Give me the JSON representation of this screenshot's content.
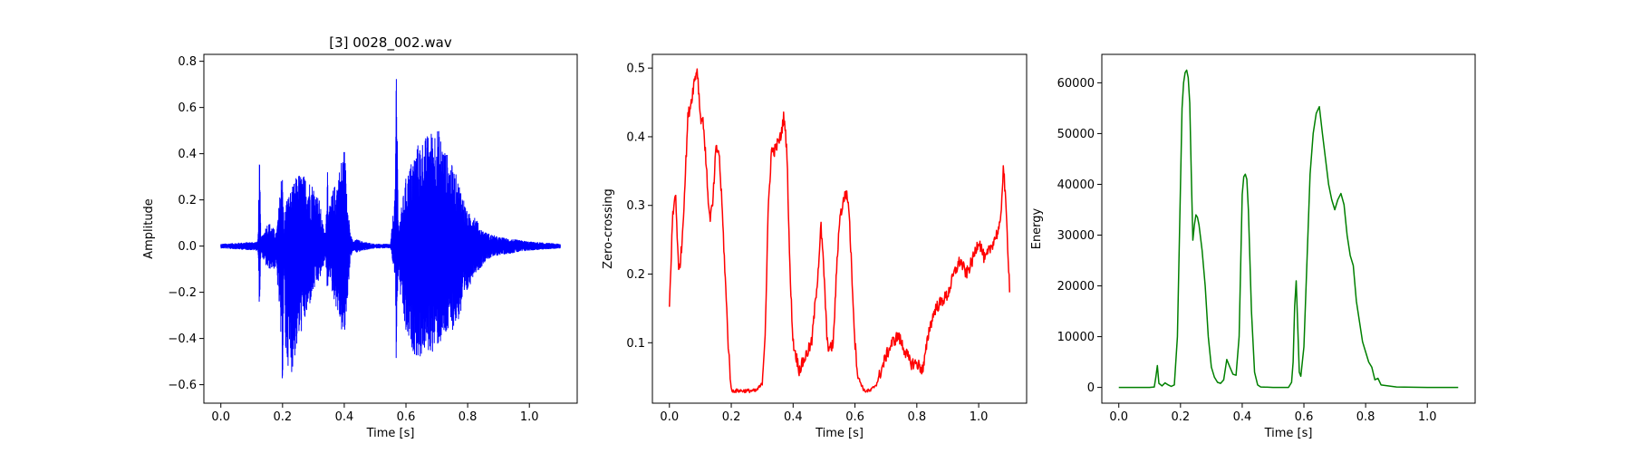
{
  "chart_data": [
    {
      "type": "line",
      "title": "[3] 0028_002.wav",
      "xlabel": "Time [s]",
      "ylabel": "Amplitude",
      "xlim": [
        -0.055,
        1.155
      ],
      "ylim": [
        -0.68,
        0.83
      ],
      "xticks": [
        0.0,
        0.2,
        0.4,
        0.6,
        0.8,
        1.0
      ],
      "xtick_labels": [
        "0.0",
        "0.2",
        "0.4",
        "0.6",
        "0.8",
        "1.0"
      ],
      "yticks": [
        -0.6,
        -0.4,
        -0.2,
        0.0,
        0.2,
        0.4,
        0.6,
        0.8
      ],
      "ytick_labels": [
        "−0.6",
        "−0.4",
        "−0.2",
        "0.0",
        "0.2",
        "0.4",
        "0.6",
        "0.8"
      ],
      "color": "#0000ff",
      "style": "waveform",
      "envelope": {
        "x": [
          0.0,
          0.12,
          0.125,
          0.13,
          0.135,
          0.15,
          0.16,
          0.18,
          0.19,
          0.2,
          0.205,
          0.21,
          0.23,
          0.25,
          0.28,
          0.3,
          0.32,
          0.33,
          0.34,
          0.345,
          0.35,
          0.36,
          0.38,
          0.4,
          0.42,
          0.43,
          0.44,
          0.46,
          0.5,
          0.55,
          0.565,
          0.568,
          0.572,
          0.575,
          0.58,
          0.6,
          0.62,
          0.64,
          0.66,
          0.68,
          0.7,
          0.72,
          0.74,
          0.76,
          0.78,
          0.8,
          0.82,
          0.84,
          0.86,
          0.9,
          1.0,
          1.1
        ],
        "upper": [
          0.01,
          0.02,
          0.41,
          0.03,
          0.05,
          0.1,
          0.1,
          0.06,
          0.2,
          0.4,
          0.05,
          0.2,
          0.25,
          0.32,
          0.3,
          0.27,
          0.2,
          0.1,
          0.05,
          0.42,
          0.15,
          0.23,
          0.31,
          0.44,
          0.05,
          0.02,
          0.03,
          0.02,
          0.01,
          0.01,
          0.25,
          0.76,
          0.6,
          0.1,
          0.12,
          0.3,
          0.38,
          0.45,
          0.47,
          0.5,
          0.53,
          0.45,
          0.38,
          0.32,
          0.25,
          0.14,
          0.15,
          0.08,
          0.06,
          0.04,
          0.02,
          0.01
        ],
        "lower": [
          -0.01,
          -0.02,
          -0.29,
          -0.03,
          -0.05,
          -0.1,
          -0.1,
          -0.1,
          -0.3,
          -0.62,
          -0.1,
          -0.5,
          -0.55,
          -0.42,
          -0.3,
          -0.2,
          -0.15,
          -0.1,
          -0.05,
          -0.29,
          -0.1,
          -0.2,
          -0.3,
          -0.43,
          -0.05,
          -0.02,
          -0.03,
          -0.02,
          -0.01,
          -0.01,
          -0.15,
          -0.52,
          -0.3,
          -0.1,
          -0.2,
          -0.4,
          -0.45,
          -0.5,
          -0.46,
          -0.47,
          -0.44,
          -0.42,
          -0.38,
          -0.35,
          -0.3,
          -0.2,
          -0.12,
          -0.1,
          -0.06,
          -0.04,
          -0.02,
          -0.01
        ]
      }
    },
    {
      "type": "line",
      "title": "",
      "xlabel": "Time [s]",
      "ylabel": "Zero-crossing",
      "xlim": [
        -0.055,
        1.155
      ],
      "ylim": [
        0.012,
        0.52
      ],
      "xticks": [
        0.0,
        0.2,
        0.4,
        0.6,
        0.8,
        1.0
      ],
      "xtick_labels": [
        "0.0",
        "0.2",
        "0.4",
        "0.6",
        "0.8",
        "1.0"
      ],
      "yticks": [
        0.1,
        0.2,
        0.3,
        0.4,
        0.5
      ],
      "ytick_labels": [
        "0.1",
        "0.2",
        "0.3",
        "0.4",
        "0.5"
      ],
      "color": "#ff0000",
      "style": "noisy-line",
      "series": [
        {
          "x": [
            0.0,
            0.01,
            0.02,
            0.03,
            0.04,
            0.05,
            0.06,
            0.07,
            0.08,
            0.09,
            0.1,
            0.11,
            0.12,
            0.13,
            0.14,
            0.15,
            0.16,
            0.17,
            0.18,
            0.19,
            0.2,
            0.22,
            0.25,
            0.28,
            0.3,
            0.31,
            0.32,
            0.33,
            0.34,
            0.35,
            0.36,
            0.37,
            0.38,
            0.39,
            0.4,
            0.42,
            0.44,
            0.46,
            0.48,
            0.49,
            0.5,
            0.51,
            0.52,
            0.53,
            0.54,
            0.55,
            0.56,
            0.57,
            0.58,
            0.59,
            0.6,
            0.61,
            0.62,
            0.63,
            0.65,
            0.67,
            0.7,
            0.72,
            0.74,
            0.76,
            0.78,
            0.8,
            0.82,
            0.84,
            0.86,
            0.88,
            0.9,
            0.92,
            0.94,
            0.96,
            0.98,
            1.0,
            1.02,
            1.04,
            1.06,
            1.07,
            1.08,
            1.09,
            1.1
          ],
          "y": [
            0.15,
            0.28,
            0.32,
            0.2,
            0.24,
            0.33,
            0.43,
            0.45,
            0.48,
            0.5,
            0.43,
            0.42,
            0.35,
            0.28,
            0.3,
            0.38,
            0.38,
            0.3,
            0.2,
            0.1,
            0.03,
            0.03,
            0.03,
            0.03,
            0.04,
            0.12,
            0.3,
            0.38,
            0.38,
            0.39,
            0.4,
            0.43,
            0.38,
            0.2,
            0.1,
            0.06,
            0.08,
            0.1,
            0.2,
            0.27,
            0.2,
            0.1,
            0.09,
            0.1,
            0.2,
            0.28,
            0.3,
            0.32,
            0.3,
            0.2,
            0.1,
            0.05,
            0.04,
            0.03,
            0.03,
            0.04,
            0.08,
            0.1,
            0.11,
            0.09,
            0.07,
            0.07,
            0.06,
            0.12,
            0.15,
            0.16,
            0.17,
            0.2,
            0.22,
            0.2,
            0.22,
            0.25,
            0.22,
            0.24,
            0.26,
            0.27,
            0.36,
            0.28,
            0.18
          ]
        }
      ]
    },
    {
      "type": "line",
      "title": "",
      "xlabel": "Time [s]",
      "ylabel": "Energy",
      "xlim": [
        -0.055,
        1.155
      ],
      "ylim": [
        -3100,
        65600
      ],
      "xticks": [
        0.0,
        0.2,
        0.4,
        0.6,
        0.8,
        1.0
      ],
      "xtick_labels": [
        "0.0",
        "0.2",
        "0.4",
        "0.6",
        "0.8",
        "1.0"
      ],
      "yticks": [
        0,
        10000,
        20000,
        30000,
        40000,
        50000,
        60000
      ],
      "ytick_labels": [
        "0",
        "10000",
        "20000",
        "30000",
        "40000",
        "50000",
        "60000"
      ],
      "color": "#008000",
      "style": "smooth-line",
      "series": [
        {
          "x": [
            0.0,
            0.1,
            0.115,
            0.12,
            0.125,
            0.13,
            0.14,
            0.15,
            0.16,
            0.17,
            0.18,
            0.19,
            0.2,
            0.205,
            0.21,
            0.215,
            0.22,
            0.225,
            0.23,
            0.235,
            0.24,
            0.245,
            0.25,
            0.255,
            0.26,
            0.27,
            0.28,
            0.29,
            0.3,
            0.31,
            0.32,
            0.33,
            0.34,
            0.35,
            0.36,
            0.37,
            0.38,
            0.39,
            0.4,
            0.405,
            0.41,
            0.415,
            0.42,
            0.425,
            0.43,
            0.44,
            0.45,
            0.46,
            0.5,
            0.55,
            0.56,
            0.565,
            0.57,
            0.575,
            0.58,
            0.585,
            0.59,
            0.6,
            0.61,
            0.62,
            0.63,
            0.64,
            0.65,
            0.66,
            0.67,
            0.68,
            0.69,
            0.7,
            0.71,
            0.72,
            0.73,
            0.74,
            0.75,
            0.76,
            0.77,
            0.78,
            0.79,
            0.8,
            0.81,
            0.82,
            0.83,
            0.84,
            0.85,
            0.9,
            1.0,
            1.1
          ],
          "y": [
            0,
            0,
            100,
            2000,
            4300,
            800,
            300,
            900,
            500,
            200,
            500,
            10000,
            40000,
            55000,
            60000,
            62000,
            62500,
            61000,
            56000,
            42000,
            29000,
            32000,
            34000,
            33500,
            32000,
            27000,
            20000,
            10000,
            4000,
            2000,
            1000,
            800,
            1500,
            5500,
            4000,
            2600,
            2400,
            10000,
            38000,
            41500,
            42000,
            41000,
            35000,
            25000,
            15000,
            3000,
            500,
            100,
            0,
            0,
            1000,
            5000,
            16000,
            21000,
            12000,
            3000,
            2200,
            8000,
            25000,
            42000,
            50000,
            54000,
            55300,
            50000,
            45000,
            40000,
            37000,
            35000,
            37000,
            38200,
            36000,
            30000,
            26000,
            24000,
            17000,
            13000,
            9000,
            7000,
            5000,
            4000,
            1500,
            1800,
            500,
            100,
            0,
            0
          ]
        }
      ]
    }
  ]
}
